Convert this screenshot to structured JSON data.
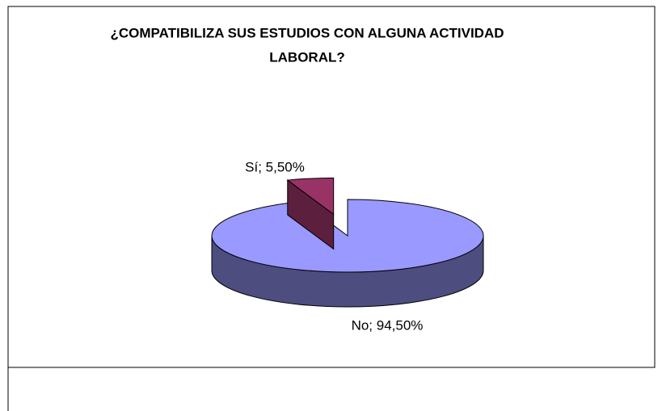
{
  "chart_data": {
    "type": "pie",
    "title_lines": [
      "¿COMPATIBILIZA SUS ESTUDIOS CON ALGUNA ACTIVIDAD",
      "LABORAL?"
    ],
    "values": [
      5.5,
      94.5
    ],
    "value_labels": [
      "Sí; 5,50%",
      "No; 94,50%"
    ],
    "colors": [
      "#993366",
      "#9999ff"
    ],
    "side_colors": [
      "#5c1f3d",
      "#4d4d80"
    ]
  }
}
